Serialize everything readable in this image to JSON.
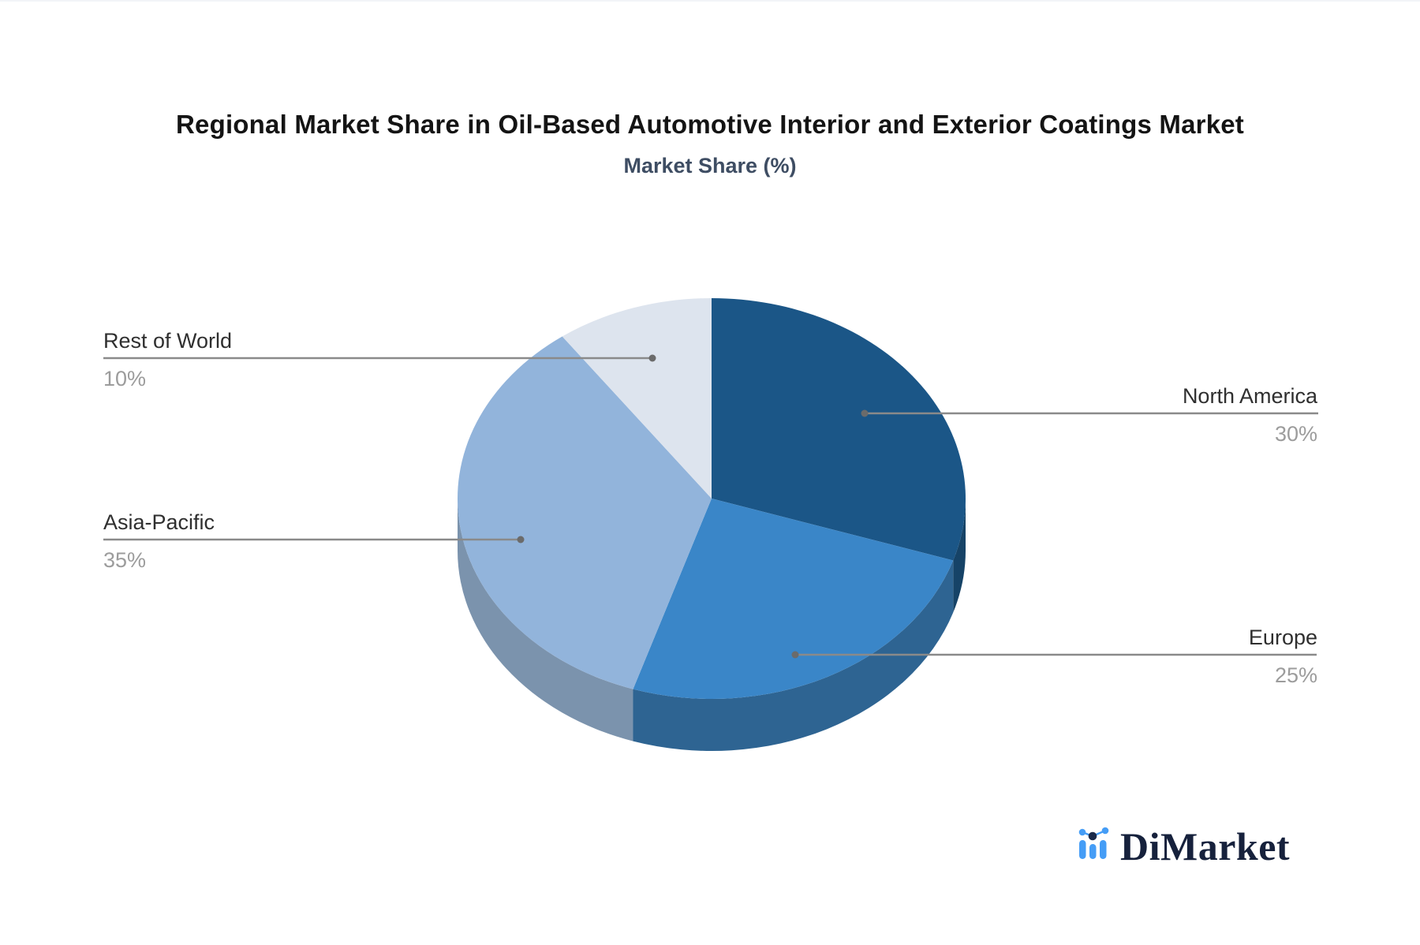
{
  "chart_data": {
    "type": "pie",
    "style": "3d",
    "title": "Regional Market Share in Oil-Based Automotive Interior and Exterior Coatings Market",
    "subtitle": "Market Share (%)",
    "unit": "%",
    "total": 100,
    "direction": "clockwise",
    "start_angle_deg": 0,
    "legend_position": "none",
    "slices": [
      {
        "label": "North America",
        "value": 30,
        "display_value": "30%",
        "color": "#1b5687",
        "side_color": "#164367",
        "label_side": "right"
      },
      {
        "label": "Europe",
        "value": 25,
        "display_value": "25%",
        "color": "#3a86c8",
        "side_color": "#2e6492",
        "label_side": "right"
      },
      {
        "label": "Asia-Pacific",
        "value": 35,
        "display_value": "35%",
        "color": "#92b4db",
        "side_color": "#7b93ad",
        "label_side": "left"
      },
      {
        "label": "Rest of World",
        "value": 10,
        "display_value": "10%",
        "color": "#dde4ee",
        "side_color": "#c3cddd",
        "label_side": "left"
      }
    ]
  },
  "colors": {
    "background": "#ffffff",
    "title_text": "#141414",
    "subtitle_text": "#3e4d63",
    "label_text": "#2f2f2f",
    "value_text": "#9c9c9c",
    "leader_line": "#8a8a8a",
    "leader_dot": "#6b6b6b"
  },
  "logo": {
    "text": "DiMarket",
    "icon": "bar-chart-trend-icon",
    "icon_color": "#459df6",
    "icon_dot_dark_color": "#1b2a4a",
    "text_color": "#16213c"
  }
}
